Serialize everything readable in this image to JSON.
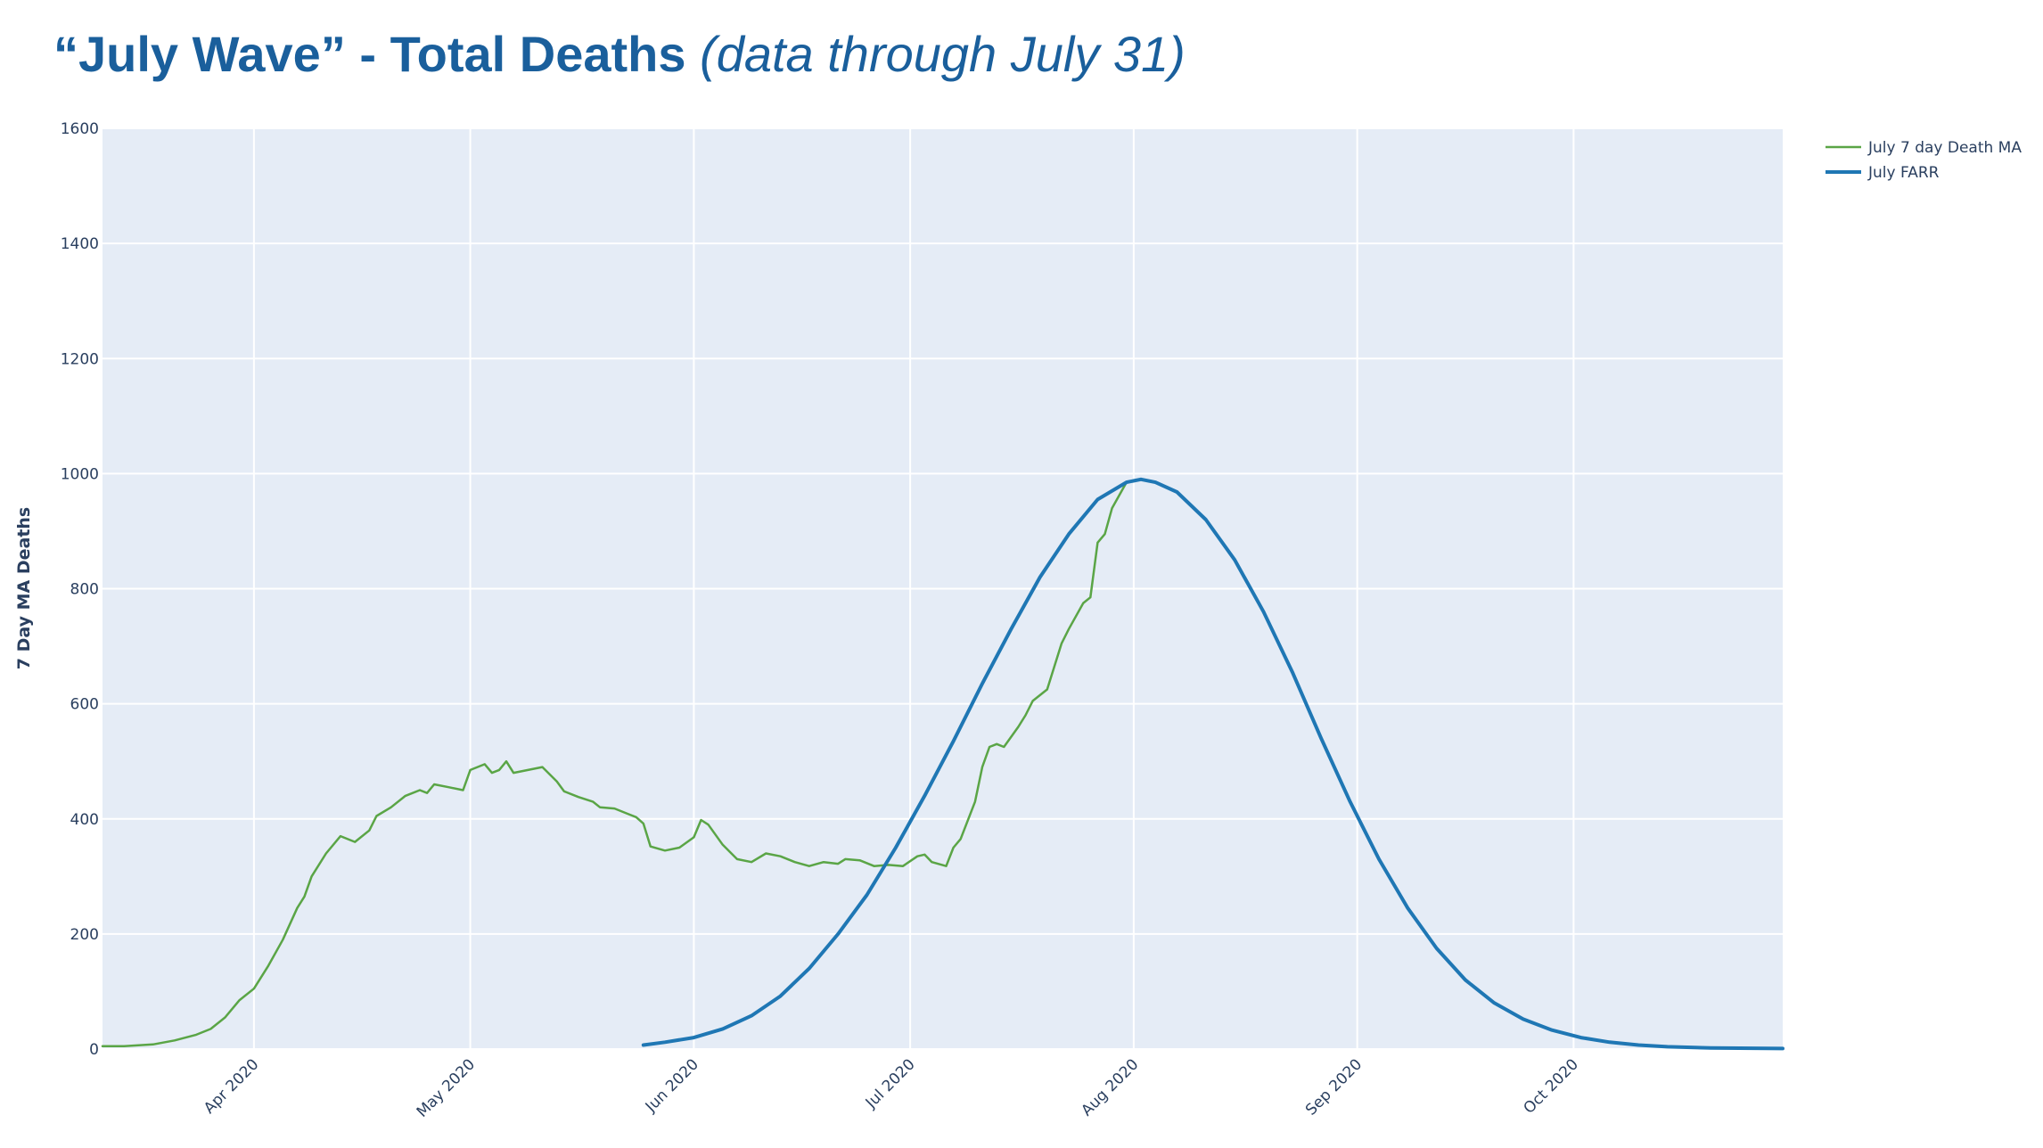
{
  "title": {
    "main": "“July Wave” - Total Deaths ",
    "sub": "(data through July 31)"
  },
  "colors": {
    "plot_bg": "#e5ecf6",
    "grid": "#ffffff",
    "death_ma": "#5aa546",
    "farr": "#1f77b4",
    "text": "#2a3f5f"
  },
  "chart_data": {
    "type": "line",
    "title": "“July Wave” - Total Deaths (data through July 31)",
    "xlabel": "",
    "ylabel": "7 Day MA Deaths",
    "xlim": [
      "2020-03-11",
      "2020-10-30"
    ],
    "ylim": [
      0,
      1600
    ],
    "yticks": [
      0,
      200,
      400,
      600,
      800,
      1000,
      1200,
      1400,
      1600
    ],
    "xticks": [
      {
        "date": "2020-04-01",
        "label": "Apr 2020"
      },
      {
        "date": "2020-05-01",
        "label": "May 2020"
      },
      {
        "date": "2020-06-01",
        "label": "Jun 2020"
      },
      {
        "date": "2020-07-01",
        "label": "Jul 2020"
      },
      {
        "date": "2020-08-01",
        "label": "Aug 2020"
      },
      {
        "date": "2020-09-01",
        "label": "Sep 2020"
      },
      {
        "date": "2020-10-01",
        "label": "Oct 2020"
      }
    ],
    "grid": true,
    "legend_position": "top-right",
    "series": [
      {
        "name": "July 7 day Death MA",
        "points": [
          [
            "2020-03-11",
            5
          ],
          [
            "2020-03-14",
            5
          ],
          [
            "2020-03-18",
            8
          ],
          [
            "2020-03-21",
            15
          ],
          [
            "2020-03-24",
            25
          ],
          [
            "2020-03-26",
            35
          ],
          [
            "2020-03-28",
            55
          ],
          [
            "2020-03-30",
            85
          ],
          [
            "2020-04-01",
            105
          ],
          [
            "2020-04-03",
            145
          ],
          [
            "2020-04-05",
            190
          ],
          [
            "2020-04-07",
            245
          ],
          [
            "2020-04-08",
            265
          ],
          [
            "2020-04-09",
            300
          ],
          [
            "2020-04-11",
            340
          ],
          [
            "2020-04-13",
            370
          ],
          [
            "2020-04-15",
            360
          ],
          [
            "2020-04-17",
            380
          ],
          [
            "2020-04-18",
            405
          ],
          [
            "2020-04-20",
            420
          ],
          [
            "2020-04-22",
            440
          ],
          [
            "2020-04-24",
            450
          ],
          [
            "2020-04-25",
            445
          ],
          [
            "2020-04-26",
            460
          ],
          [
            "2020-04-28",
            455
          ],
          [
            "2020-04-30",
            450
          ],
          [
            "2020-05-01",
            485
          ],
          [
            "2020-05-03",
            495
          ],
          [
            "2020-05-04",
            480
          ],
          [
            "2020-05-05",
            485
          ],
          [
            "2020-05-06",
            500
          ],
          [
            "2020-05-07",
            480
          ],
          [
            "2020-05-09",
            485
          ],
          [
            "2020-05-11",
            490
          ],
          [
            "2020-05-13",
            465
          ],
          [
            "2020-05-14",
            448
          ],
          [
            "2020-05-16",
            438
          ],
          [
            "2020-05-18",
            430
          ],
          [
            "2020-05-19",
            420
          ],
          [
            "2020-05-21",
            418
          ],
          [
            "2020-05-23",
            408
          ],
          [
            "2020-05-24",
            403
          ],
          [
            "2020-05-25",
            392
          ],
          [
            "2020-05-26",
            352
          ],
          [
            "2020-05-28",
            345
          ],
          [
            "2020-05-30",
            350
          ],
          [
            "2020-06-01",
            368
          ],
          [
            "2020-06-02",
            398
          ],
          [
            "2020-06-03",
            390
          ],
          [
            "2020-06-05",
            355
          ],
          [
            "2020-06-07",
            330
          ],
          [
            "2020-06-09",
            325
          ],
          [
            "2020-06-11",
            340
          ],
          [
            "2020-06-13",
            335
          ],
          [
            "2020-06-15",
            325
          ],
          [
            "2020-06-17",
            318
          ],
          [
            "2020-06-19",
            325
          ],
          [
            "2020-06-21",
            322
          ],
          [
            "2020-06-22",
            330
          ],
          [
            "2020-06-24",
            328
          ],
          [
            "2020-06-26",
            318
          ],
          [
            "2020-06-28",
            320
          ],
          [
            "2020-06-30",
            318
          ],
          [
            "2020-07-02",
            335
          ],
          [
            "2020-07-03",
            338
          ],
          [
            "2020-07-04",
            325
          ],
          [
            "2020-07-06",
            318
          ],
          [
            "2020-07-07",
            350
          ],
          [
            "2020-07-08",
            365
          ],
          [
            "2020-07-10",
            430
          ],
          [
            "2020-07-11",
            490
          ],
          [
            "2020-07-12",
            525
          ],
          [
            "2020-07-13",
            530
          ],
          [
            "2020-07-14",
            525
          ],
          [
            "2020-07-16",
            560
          ],
          [
            "2020-07-17",
            580
          ],
          [
            "2020-07-18",
            605
          ],
          [
            "2020-07-20",
            625
          ],
          [
            "2020-07-22",
            705
          ],
          [
            "2020-07-23",
            730
          ],
          [
            "2020-07-25",
            775
          ],
          [
            "2020-07-26",
            785
          ],
          [
            "2020-07-27",
            880
          ],
          [
            "2020-07-28",
            895
          ],
          [
            "2020-07-29",
            940
          ],
          [
            "2020-07-31",
            985
          ]
        ]
      },
      {
        "name": "July FARR",
        "points": [
          [
            "2020-05-25",
            7
          ],
          [
            "2020-05-28",
            12
          ],
          [
            "2020-06-01",
            20
          ],
          [
            "2020-06-05",
            35
          ],
          [
            "2020-06-09",
            58
          ],
          [
            "2020-06-13",
            92
          ],
          [
            "2020-06-17",
            140
          ],
          [
            "2020-06-21",
            200
          ],
          [
            "2020-06-25",
            268
          ],
          [
            "2020-06-29",
            350
          ],
          [
            "2020-07-03",
            440
          ],
          [
            "2020-07-07",
            535
          ],
          [
            "2020-07-11",
            635
          ],
          [
            "2020-07-15",
            730
          ],
          [
            "2020-07-19",
            820
          ],
          [
            "2020-07-23",
            895
          ],
          [
            "2020-07-27",
            955
          ],
          [
            "2020-07-31",
            985
          ],
          [
            "2020-08-02",
            990
          ],
          [
            "2020-08-04",
            985
          ],
          [
            "2020-08-07",
            968
          ],
          [
            "2020-08-11",
            920
          ],
          [
            "2020-08-15",
            850
          ],
          [
            "2020-08-19",
            760
          ],
          [
            "2020-08-23",
            655
          ],
          [
            "2020-08-27",
            540
          ],
          [
            "2020-08-31",
            430
          ],
          [
            "2020-09-04",
            330
          ],
          [
            "2020-09-08",
            245
          ],
          [
            "2020-09-12",
            175
          ],
          [
            "2020-09-16",
            120
          ],
          [
            "2020-09-20",
            80
          ],
          [
            "2020-09-24",
            52
          ],
          [
            "2020-09-28",
            33
          ],
          [
            "2020-10-02",
            20
          ],
          [
            "2020-10-06",
            12
          ],
          [
            "2020-10-10",
            7
          ],
          [
            "2020-10-14",
            4
          ],
          [
            "2020-10-20",
            2
          ],
          [
            "2020-10-30",
            1
          ]
        ]
      }
    ]
  }
}
